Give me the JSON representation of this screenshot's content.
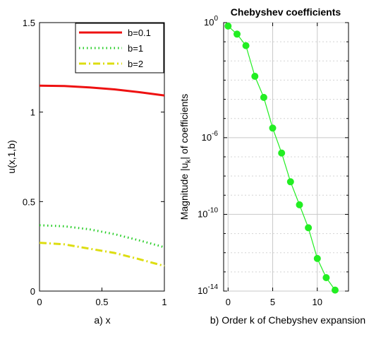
{
  "chart_data": [
    {
      "type": "line",
      "xlabel": "a) x",
      "ylabel": "u(x,1,b)",
      "xlim": [
        0,
        1
      ],
      "ylim": [
        0,
        1.5
      ],
      "x_ticks": [
        0,
        0.5,
        1
      ],
      "y_ticks": [
        0,
        0.5,
        1,
        1.5
      ],
      "x_tick_labels": [
        "0",
        "0.5",
        "1"
      ],
      "y_tick_labels": [
        "0",
        "0.5",
        "1",
        "1.5"
      ],
      "grid": false,
      "legend_position": "top-right",
      "series": [
        {
          "name": "b=0.1",
          "color": "#ee1111",
          "style": "solid",
          "x": [
            0,
            0.2,
            0.4,
            0.6,
            0.8,
            1.0
          ],
          "y": [
            1.148,
            1.146,
            1.138,
            1.127,
            1.111,
            1.093
          ]
        },
        {
          "name": "b=1",
          "color": "#22cc22",
          "style": "dotted",
          "x": [
            0,
            0.2,
            0.4,
            0.6,
            0.8,
            1.0
          ],
          "y": [
            0.368,
            0.362,
            0.345,
            0.318,
            0.283,
            0.245
          ]
        },
        {
          "name": "b=2",
          "color": "#dddd11",
          "style": "dashdot",
          "x": [
            0,
            0.2,
            0.4,
            0.6,
            0.8,
            1.0
          ],
          "y": [
            0.27,
            0.261,
            0.237,
            0.213,
            0.178,
            0.14
          ]
        }
      ]
    },
    {
      "type": "line",
      "title": "Chebyshev coefficients",
      "xlabel": "b) Order k of Chebyshev expansion",
      "ylabel_main": "Magnitude |u",
      "ylabel_sub": "k",
      "ylabel_tail": "| of coefficients",
      "xlim": [
        -0.5,
        13.5
      ],
      "yscale": "log",
      "ylim_log10": [
        -14,
        0
      ],
      "x_ticks": [
        0,
        5,
        10
      ],
      "x_tick_labels": [
        "0",
        "5",
        "10"
      ],
      "y_ticks_log10": [
        -14,
        -10,
        -6,
        0
      ],
      "y_tick_base": "10",
      "y_tick_exponents": [
        "-14",
        "-10",
        "-6",
        "0"
      ],
      "grid": true,
      "series": [
        {
          "color": "#22ee22",
          "k": [
            0,
            1,
            2,
            3,
            4,
            5,
            6,
            7,
            8,
            9,
            10,
            11,
            12
          ],
          "log10_magnitude": [
            -0.18,
            -0.6,
            -1.2,
            -2.8,
            -3.9,
            -5.5,
            -6.8,
            -8.3,
            -9.5,
            -10.7,
            -12.3,
            -13.3,
            -13.95
          ]
        }
      ]
    }
  ]
}
